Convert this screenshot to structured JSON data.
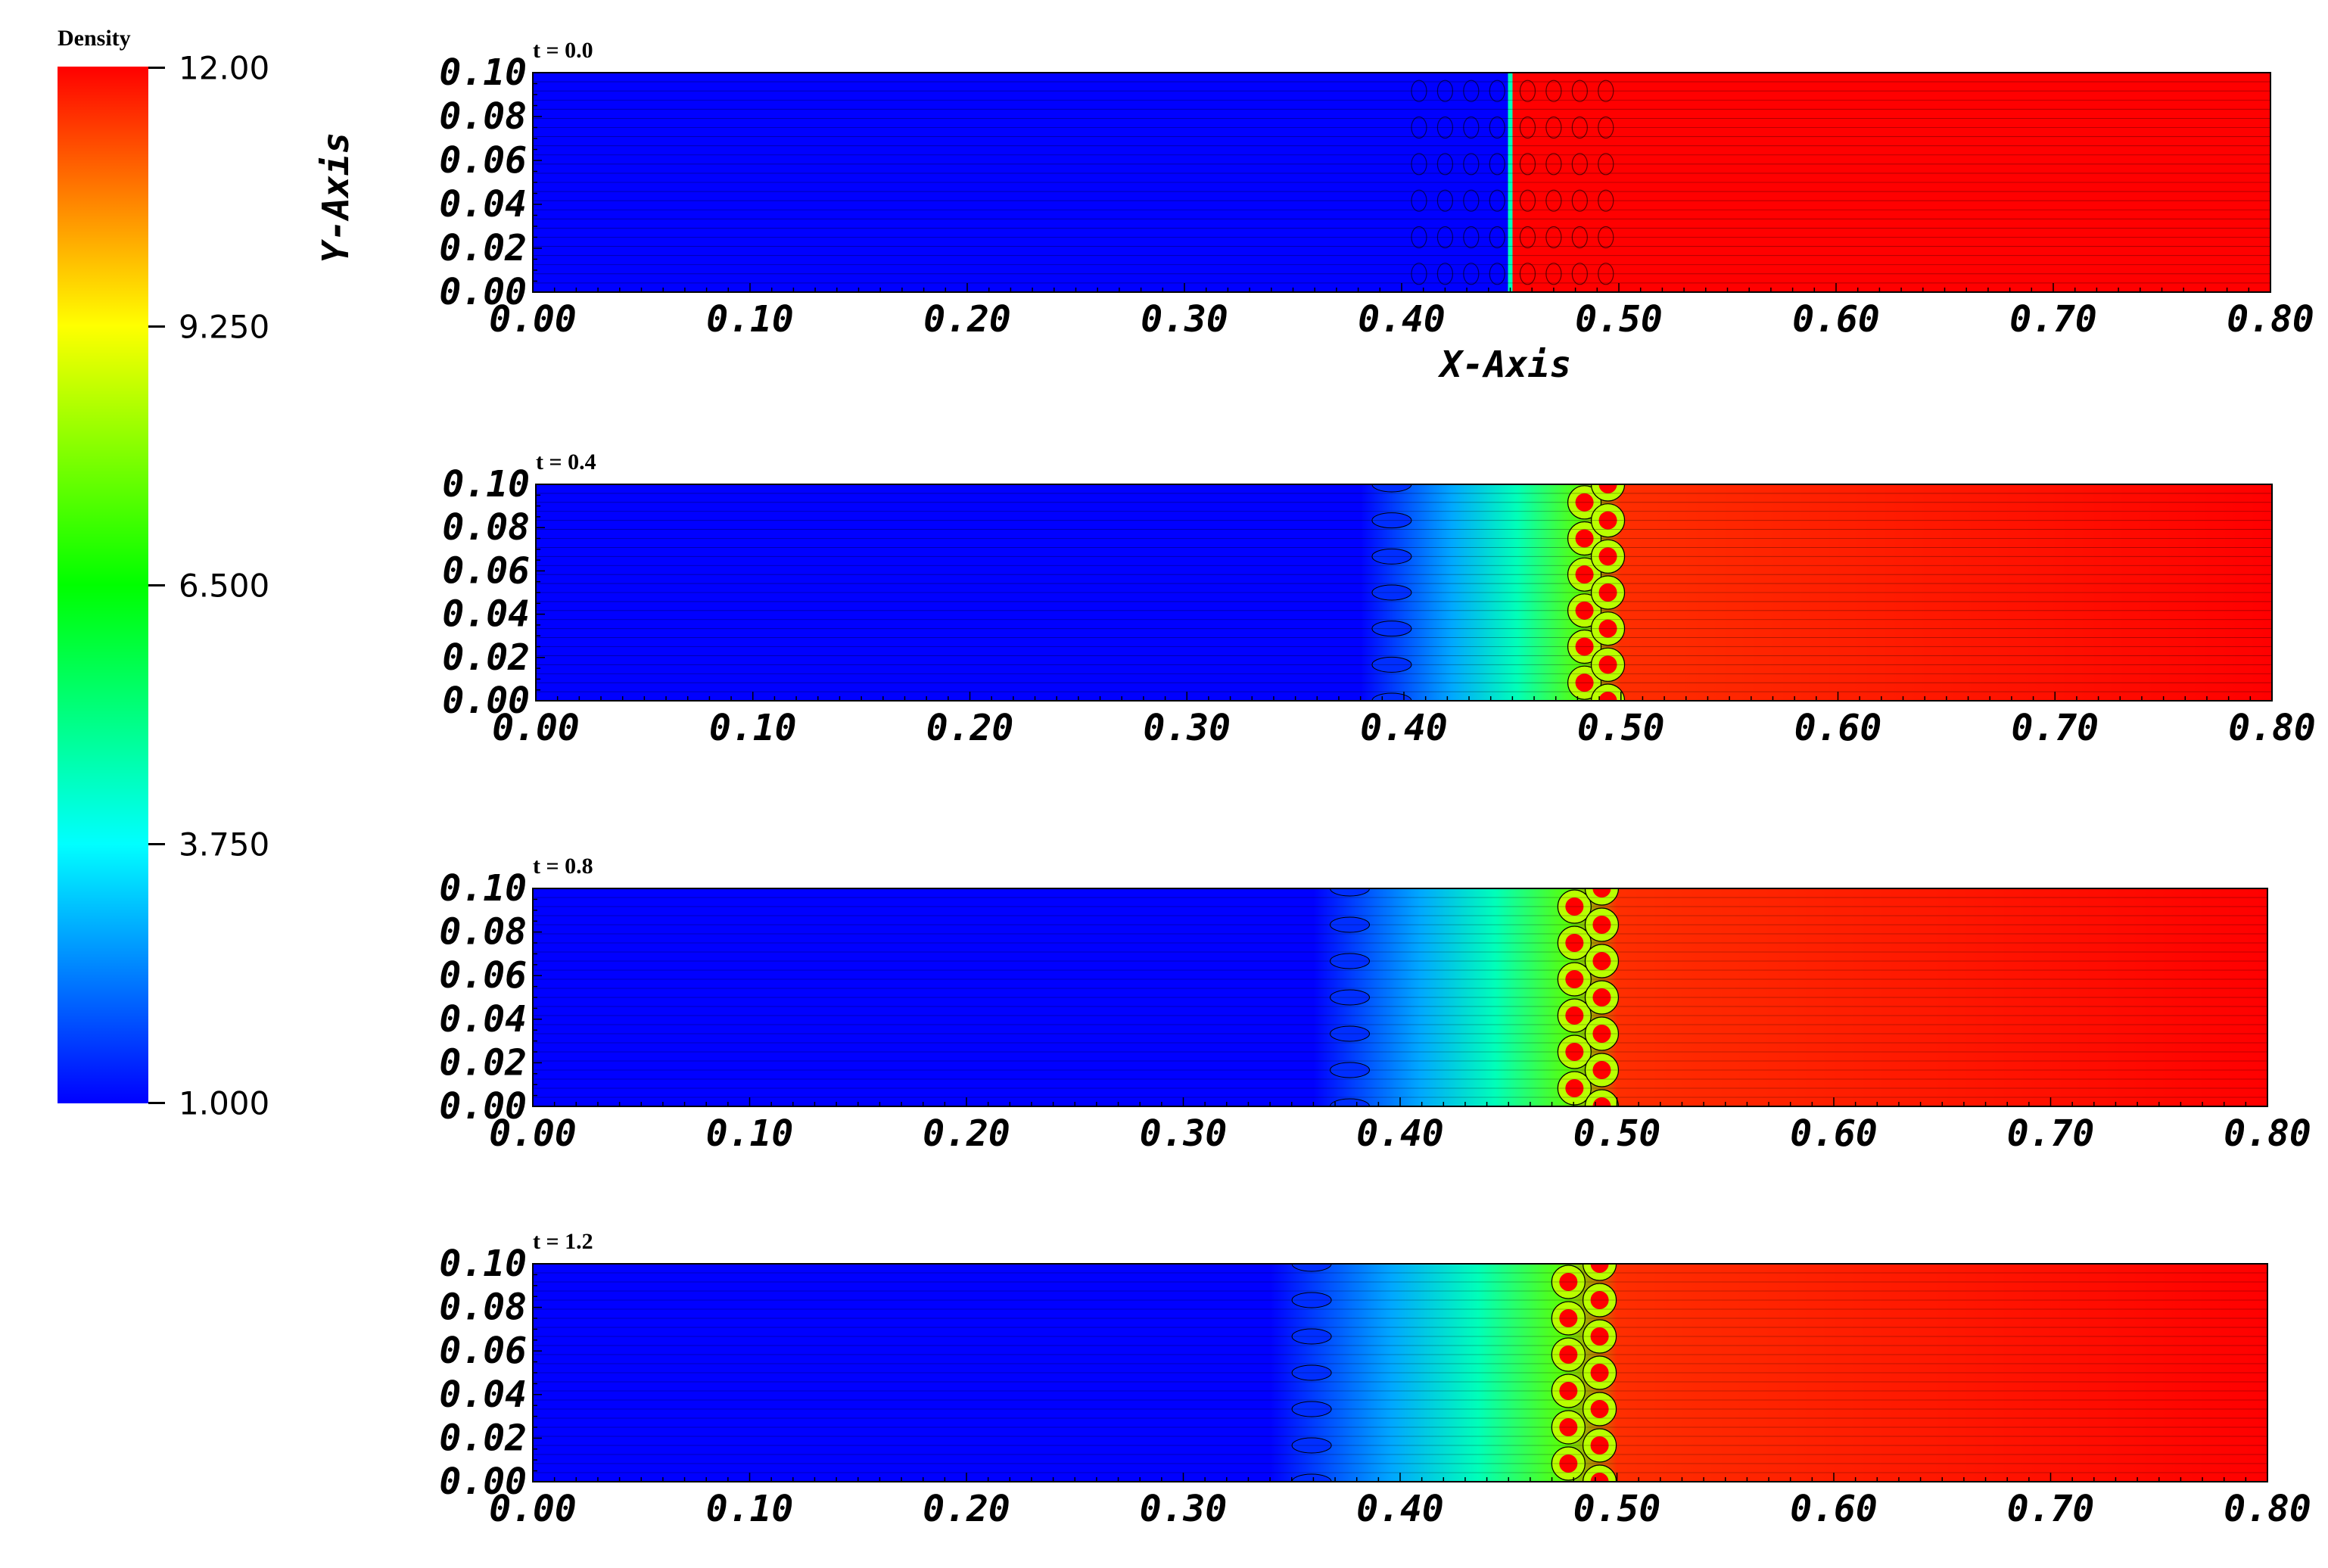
{
  "colorbar": {
    "title": "Density",
    "min": 1.0,
    "max": 12.0,
    "ticks": [
      "12.00",
      "9.250",
      "6.500",
      "3.750",
      "1.000"
    ],
    "tick_values": [
      12.0,
      9.25,
      6.5,
      3.75,
      1.0
    ],
    "colormap": [
      "#0000ff",
      "#00ffff",
      "#00ff00",
      "#ffff00",
      "#ff0000"
    ]
  },
  "chart_data": [
    {
      "type": "heatmap",
      "title": "t = 0.0",
      "xlabel": "X-Axis",
      "ylabel": "Y-Axis",
      "xlim": [
        0.0,
        0.8
      ],
      "ylim": [
        0.0,
        0.1
      ],
      "x_ticks": [
        "0.00",
        "0.10",
        "0.20",
        "0.30",
        "0.40",
        "0.50",
        "0.60",
        "0.70",
        "0.80"
      ],
      "y_ticks": [
        "0.10",
        "0.08",
        "0.06",
        "0.04",
        "0.02",
        "0.00"
      ],
      "low_density": 1.0,
      "high_density": 12.0,
      "interface_x": 0.45,
      "mixing_zone": [
        0.4,
        0.5
      ]
    },
    {
      "type": "heatmap",
      "title": "t = 0.4",
      "xlabel": "",
      "ylabel": "",
      "xlim": [
        0.0,
        0.8
      ],
      "ylim": [
        0.0,
        0.1
      ],
      "x_ticks": [
        "0.00",
        "0.10",
        "0.20",
        "0.30",
        "0.40",
        "0.50",
        "0.60",
        "0.70",
        "0.80"
      ],
      "y_ticks": [
        "0.10",
        "0.08",
        "0.06",
        "0.04",
        "0.02",
        "0.00"
      ],
      "low_density": 1.0,
      "high_density": 12.0,
      "mixing_zone": [
        0.38,
        0.5
      ]
    },
    {
      "type": "heatmap",
      "title": "t = 0.8",
      "xlabel": "",
      "ylabel": "",
      "xlim": [
        0.0,
        0.8
      ],
      "ylim": [
        0.0,
        0.1
      ],
      "x_ticks": [
        "0.00",
        "0.10",
        "0.20",
        "0.30",
        "0.40",
        "0.50",
        "0.60",
        "0.70",
        "0.80"
      ],
      "y_ticks": [
        "0.10",
        "0.08",
        "0.06",
        "0.04",
        "0.02",
        "0.00"
      ],
      "low_density": 1.0,
      "high_density": 12.0,
      "mixing_zone": [
        0.36,
        0.5
      ]
    },
    {
      "type": "heatmap",
      "title": "t = 1.2",
      "xlabel": "",
      "ylabel": "",
      "xlim": [
        0.0,
        0.8
      ],
      "ylim": [
        0.0,
        0.1
      ],
      "x_ticks": [
        "0.00",
        "0.10",
        "0.20",
        "0.30",
        "0.40",
        "0.50",
        "0.60",
        "0.70",
        "0.80"
      ],
      "y_ticks": [
        "0.10",
        "0.08",
        "0.06",
        "0.04",
        "0.02",
        "0.00"
      ],
      "low_density": 1.0,
      "high_density": 12.0,
      "mixing_zone": [
        0.34,
        0.5
      ]
    }
  ]
}
